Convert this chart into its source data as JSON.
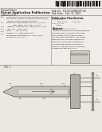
{
  "bg_color": "#f0ede8",
  "barcode_color": "#111111",
  "text_dark": "#111111",
  "text_mid": "#333333",
  "text_light": "#555555",
  "sep_color": "#888888",
  "probe_face": "#c8c5bc",
  "probe_inner": "#dedad4",
  "probe_edge": "#666666",
  "handle_face": "#b5b0a8",
  "handle_edge": "#555555",
  "tube_color": "#888888",
  "arrow_color": "#666666",
  "diagram_bg": "#e8e4dc"
}
